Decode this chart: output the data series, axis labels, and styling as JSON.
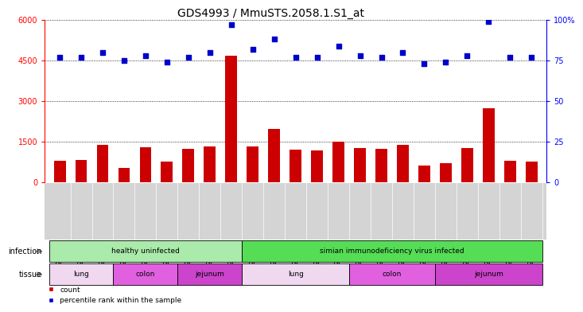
{
  "title": "GDS4993 / MmuSTS.2058.1.S1_at",
  "samples": [
    "GSM1249391",
    "GSM1249392",
    "GSM1249393",
    "GSM1249369",
    "GSM1249370",
    "GSM1249371",
    "GSM1249380",
    "GSM1249381",
    "GSM1249382",
    "GSM1249386",
    "GSM1249387",
    "GSM1249388",
    "GSM1249389",
    "GSM1249390",
    "GSM1249365",
    "GSM1249366",
    "GSM1249367",
    "GSM1249368",
    "GSM1249375",
    "GSM1249376",
    "GSM1249377",
    "GSM1249378",
    "GSM1249379"
  ],
  "counts": [
    800,
    820,
    1400,
    550,
    1300,
    780,
    1230,
    1330,
    4680,
    1330,
    1970,
    1200,
    1190,
    1520,
    1270,
    1230,
    1380,
    620,
    710,
    1280,
    2750,
    790,
    770
  ],
  "percentiles": [
    77,
    77,
    80,
    75,
    78,
    74,
    77,
    80,
    97,
    82,
    88,
    77,
    77,
    84,
    78,
    77,
    80,
    73,
    74,
    78,
    99,
    77,
    77
  ],
  "bar_color": "#cc0000",
  "dot_color": "#0000cc",
  "ylim_left": [
    0,
    6000
  ],
  "ylim_right": [
    0,
    100
  ],
  "yticks_left": [
    0,
    1500,
    3000,
    4500,
    6000
  ],
  "yticks_right": [
    0,
    25,
    50,
    75,
    100
  ],
  "infection_groups": [
    {
      "label": "healthy uninfected",
      "start": 0,
      "end": 8,
      "color": "#aaeaaa"
    },
    {
      "label": "simian immunodeficiency virus infected",
      "start": 9,
      "end": 22,
      "color": "#55dd55"
    }
  ],
  "tissue_groups": [
    {
      "label": "lung",
      "start": 0,
      "end": 2,
      "color": "#f0d8f0"
    },
    {
      "label": "colon",
      "start": 3,
      "end": 5,
      "color": "#e060e0"
    },
    {
      "label": "jejunum",
      "start": 6,
      "end": 8,
      "color": "#cc44cc"
    },
    {
      "label": "lung",
      "start": 9,
      "end": 13,
      "color": "#f0d8f0"
    },
    {
      "label": "colon",
      "start": 14,
      "end": 17,
      "color": "#e060e0"
    },
    {
      "label": "jejunum",
      "start": 18,
      "end": 22,
      "color": "#cc44cc"
    }
  ],
  "infection_label": "infection",
  "tissue_label": "tissue",
  "legend_count_label": "count",
  "legend_percentile_label": "percentile rank within the sample",
  "plot_bg_color": "#ffffff",
  "sample_bg_color": "#d4d4d4",
  "title_fontsize": 10,
  "tick_fontsize": 7,
  "label_fontsize": 7,
  "sample_fontsize": 5.5
}
